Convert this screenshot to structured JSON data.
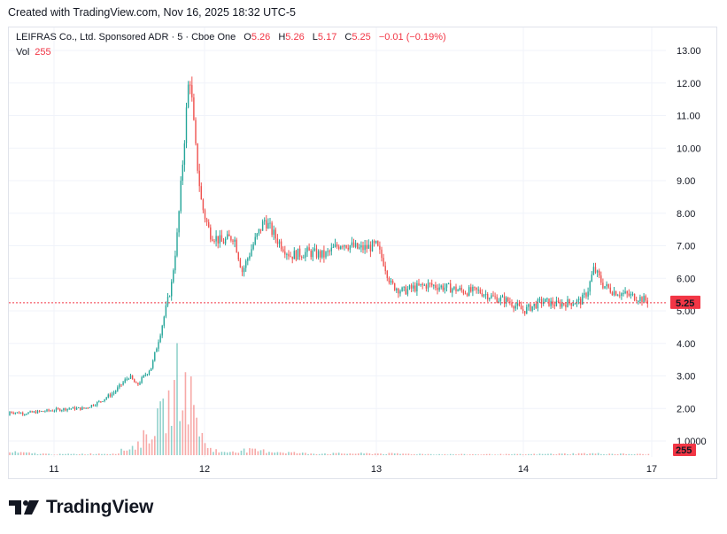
{
  "header": {
    "created_text": "Created with TradingView.com, Nov 16, 2025 18:32 UTC-5"
  },
  "legend": {
    "symbol": "LEIFRAS Co., Ltd. Sponsored ADR · 5 · Cboe One",
    "o_label": "O",
    "o_value": "5.26",
    "h_label": "H",
    "h_value": "5.26",
    "l_label": "L",
    "l_value": "5.17",
    "c_label": "C",
    "c_value": "5.25",
    "change": "−0.01 (−0.19%)",
    "vol_label": "Vol",
    "vol_value": "255"
  },
  "brand": {
    "name": "TradingView"
  },
  "colors": {
    "up": "#26a69a",
    "down": "#ef5350",
    "grid": "#f0f3fa",
    "last_price": "#f23645"
  },
  "chart_data": {
    "type": "candlestick",
    "y_ticks": [
      "13.00",
      "12.00",
      "11.00",
      "10.00",
      "9.00",
      "8.00",
      "7.00",
      "6.00",
      "5.00",
      "4.00",
      "3.00",
      "2.00",
      "1.0000"
    ],
    "y_tick_values": [
      13,
      12,
      11,
      10,
      9,
      8,
      7,
      6,
      5,
      4,
      3,
      2,
      1
    ],
    "x_ticks": [
      "11",
      "12",
      "13",
      "14",
      "17"
    ],
    "x_tick_days": [
      11,
      12,
      13,
      14,
      17
    ],
    "ylim": [
      0.5,
      13.5
    ],
    "last_price": 5.25,
    "last_price_label": "5.25",
    "volume_label": "255",
    "price_path": [
      [
        10.0,
        1.78
      ],
      [
        10.1,
        1.7
      ],
      [
        10.2,
        1.62
      ],
      [
        10.3,
        1.6
      ],
      [
        10.35,
        1.65
      ],
      [
        10.45,
        1.9
      ],
      [
        10.5,
        3.1
      ],
      [
        10.55,
        2.8
      ],
      [
        10.6,
        2.1
      ],
      [
        10.7,
        1.9
      ],
      [
        10.8,
        1.85
      ],
      [
        10.9,
        1.9
      ],
      [
        11.0,
        1.95
      ],
      [
        11.1,
        2.0
      ],
      [
        11.2,
        2.0
      ],
      [
        11.3,
        2.2
      ],
      [
        11.4,
        2.5
      ],
      [
        11.5,
        3.0
      ],
      [
        11.55,
        2.7
      ],
      [
        11.65,
        3.3
      ],
      [
        11.72,
        4.6
      ],
      [
        11.78,
        5.8
      ],
      [
        11.82,
        7.4
      ],
      [
        11.86,
        9.9
      ],
      [
        11.9,
        12.4
      ],
      [
        11.94,
        10.0
      ],
      [
        11.98,
        8.3
      ],
      [
        12.03,
        7.4
      ],
      [
        12.1,
        7.1
      ],
      [
        12.17,
        7.3
      ],
      [
        12.22,
        6.2
      ],
      [
        12.28,
        7.0
      ],
      [
        12.35,
        7.8
      ],
      [
        12.42,
        7.2
      ],
      [
        12.5,
        6.7
      ],
      [
        12.6,
        6.8
      ],
      [
        12.7,
        6.7
      ],
      [
        12.8,
        7.1
      ],
      [
        12.9,
        6.9
      ],
      [
        13.0,
        7.0
      ],
      [
        13.05,
        6.5
      ],
      [
        13.1,
        5.8
      ],
      [
        13.18,
        5.6
      ],
      [
        13.25,
        5.7
      ],
      [
        13.35,
        5.8
      ],
      [
        13.5,
        5.7
      ],
      [
        13.6,
        5.6
      ],
      [
        13.7,
        5.6
      ],
      [
        13.8,
        5.4
      ],
      [
        13.9,
        5.3
      ],
      [
        14.0,
        5.0
      ],
      [
        14.05,
        5.1
      ],
      [
        14.15,
        5.3
      ],
      [
        14.25,
        5.2
      ],
      [
        14.35,
        5.25
      ],
      [
        14.45,
        5.3
      ],
      [
        14.5,
        5.6
      ],
      [
        14.55,
        6.3
      ],
      [
        14.62,
        5.8
      ],
      [
        14.7,
        5.6
      ],
      [
        14.8,
        5.5
      ],
      [
        14.9,
        5.4
      ],
      [
        15.0,
        5.25
      ]
    ],
    "volume_path": [
      [
        10.0,
        0.05
      ],
      [
        10.3,
        0.05
      ],
      [
        10.45,
        0.4
      ],
      [
        10.5,
        1.4
      ],
      [
        10.55,
        0.8
      ],
      [
        10.65,
        0.2
      ],
      [
        11.0,
        0.05
      ],
      [
        11.4,
        0.1
      ],
      [
        11.55,
        0.6
      ],
      [
        11.65,
        1.5
      ],
      [
        11.72,
        2.3
      ],
      [
        11.78,
        3.2
      ],
      [
        11.82,
        4.6
      ],
      [
        11.86,
        4.0
      ],
      [
        11.9,
        3.6
      ],
      [
        11.95,
        2.2
      ],
      [
        12.0,
        0.6
      ],
      [
        12.1,
        0.15
      ],
      [
        12.2,
        0.3
      ],
      [
        12.35,
        0.25
      ],
      [
        12.6,
        0.1
      ],
      [
        13.0,
        0.1
      ],
      [
        13.5,
        0.05
      ],
      [
        14.0,
        0.05
      ],
      [
        14.5,
        0.1
      ],
      [
        15.0,
        0.05
      ]
    ]
  }
}
